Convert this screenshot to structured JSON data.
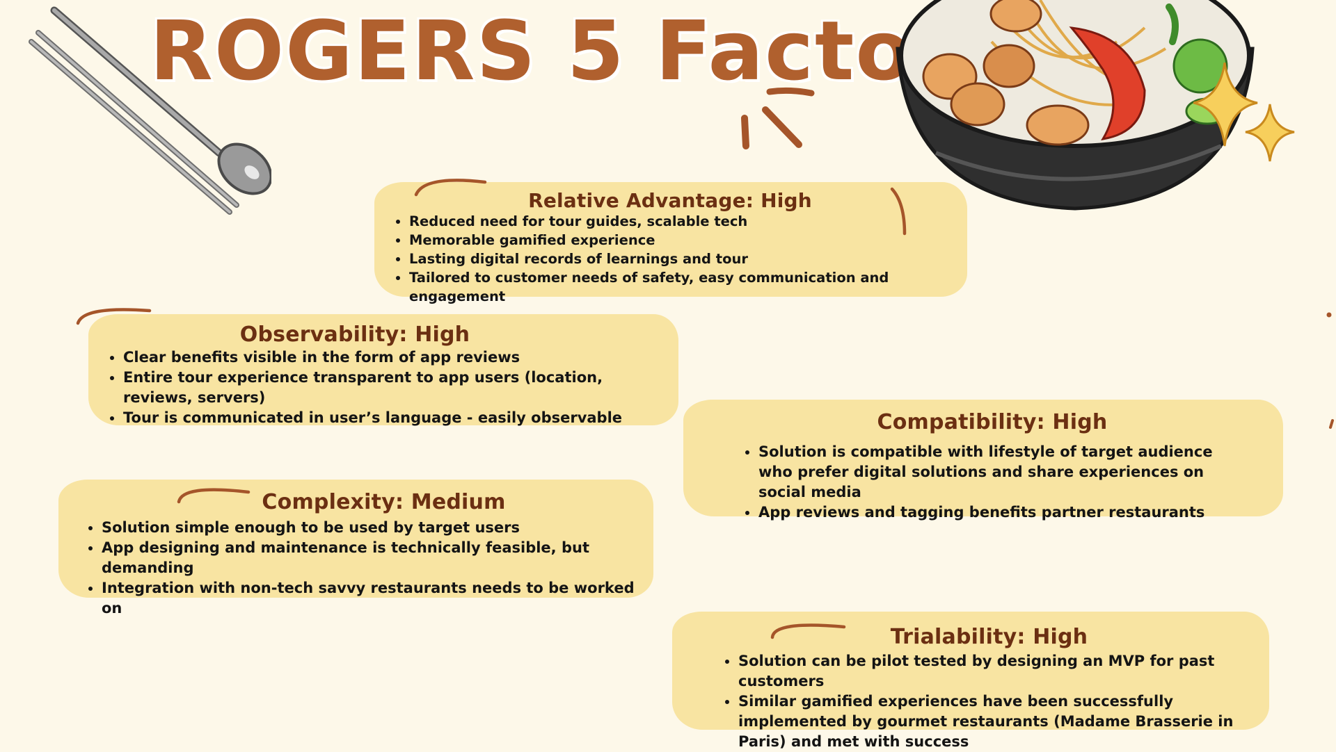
{
  "title": "ROGERS 5 Factors",
  "colors": {
    "background": "#fdf8e9",
    "card": "#f8e4a2",
    "heading": "#6b2f12",
    "title": "#b0602e",
    "accent": "#a5552a"
  },
  "decorations": [
    "chopsticks-spoon-illustration",
    "seafood-noodle-bowl-illustration",
    "sparkle-icon"
  ],
  "cards": {
    "relative_advantage": {
      "heading": "Relative Advantage: High",
      "items": [
        "Reduced need for tour guides, scalable tech",
        "Memorable gamified experience",
        "Lasting digital records of learnings and tour",
        "Tailored to customer needs of safety, easy communication and engagement"
      ]
    },
    "observability": {
      "heading": "Observability: High",
      "items": [
        "Clear benefits visible in the form of app reviews",
        "Entire tour experience transparent to app users (location, reviews, servers)",
        "Tour is communicated in user’s language - easily observable"
      ]
    },
    "compatibility": {
      "heading": "Compatibility: High",
      "items": [
        "Solution is compatible with lifestyle of target audience who prefer digital solutions and share experiences on social media",
        "App reviews and tagging benefits partner restaurants"
      ]
    },
    "complexity": {
      "heading": "Complexity: Medium",
      "items": [
        "Solution simple enough to be used by target users",
        "App designing and maintenance is technically feasible, but demanding",
        "Integration with non-tech savvy restaurants needs to be worked on"
      ]
    },
    "trialability": {
      "heading": "Trialability: High",
      "items": [
        "Solution can be pilot tested by designing an MVP for past customers",
        "Similar gamified experiences have been successfully implemented by gourmet restaurants (Madame Brasserie in Paris) and met with success"
      ]
    }
  }
}
